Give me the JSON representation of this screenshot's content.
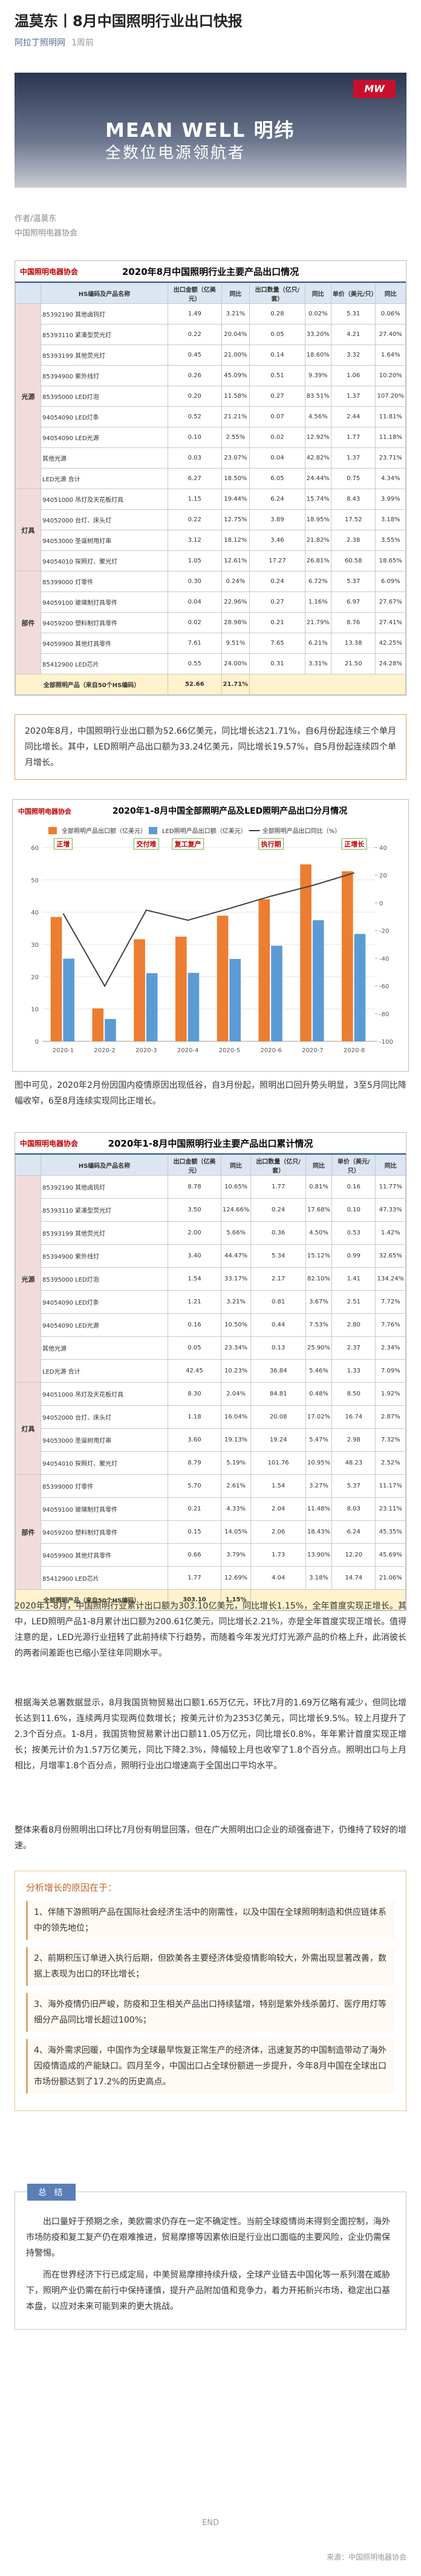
{
  "header": {
    "title": "温莫东丨8月中国照明行业出口快报",
    "source": "阿拉丁照明网",
    "time": "1周前"
  },
  "banner": {
    "logo": "MW",
    "line1": "MEAN WELL 明纬",
    "line2": "全数位电源领航者"
  },
  "author": {
    "name": "作者/温莫东",
    "org": "中国照明电器协会"
  },
  "tables": [
    {
      "logo": "中国照明电器协会",
      "title": "2020年8月中国照明行业主要产品出口情况",
      "header": [
        "",
        "HS编码及产品名称",
        "出口金额（亿美元）",
        "同比",
        "出口数量（亿只/套）",
        "同比",
        "单价（美元/只）",
        "同比"
      ],
      "rows": [
        {
          "group": "光源",
          "cells": [
            "85392190 其他卤钨灯",
            "1.49",
            "3.21%",
            "0.28",
            "0.02%",
            "5.31",
            "0.06%"
          ]
        },
        {
          "cells": [
            "85393110 紧凑型荧光灯",
            "0.22",
            "20.04%",
            "0.05",
            "33.20%",
            "4.21",
            "27.40%"
          ]
        },
        {
          "cells": [
            "85393199 其他荧光灯",
            "0.45",
            "21.00%",
            "0.14",
            "18.60%",
            "3.32",
            "1.64%"
          ]
        },
        {
          "cells": [
            "85394900 紫外线灯",
            "0.26",
            "45.09%",
            "0.51",
            "9.39%",
            "1.06",
            "10.20%"
          ]
        },
        {
          "cells": [
            "85395000 LED灯泡",
            "0.20",
            "11.58%",
            "0.27",
            "83.51%",
            "1.37",
            "107.20%"
          ]
        },
        {
          "cells": [
            "94054090 LED灯条",
            "0.52",
            "21.21%",
            "0.07",
            "4.56%",
            "2.44",
            "11.81%"
          ]
        },
        {
          "cells": [
            "94054090 LED光源",
            "0.10",
            "2.55%",
            "0.02",
            "12.92%",
            "1.77",
            "11.18%"
          ]
        },
        {
          "cells": [
            "其他光源",
            "0.03",
            "23.07%",
            "0.04",
            "42.82%",
            "1.37",
            "23.71%"
          ]
        },
        {
          "cells": [
            "LED光源 合计",
            "6.27",
            "18.50%",
            "6.05",
            "24.44%",
            "0.75",
            "4.34%"
          ]
        },
        {
          "group": "灯具",
          "cells": [
            "94051000 吊灯及天花板灯具",
            "1.15",
            "19.44%",
            "6.24",
            "15.74%",
            "8.43",
            "3.99%"
          ]
        },
        {
          "cells": [
            "94052000 台灯、床头灯",
            "0.22",
            "12.75%",
            "3.89",
            "18.95%",
            "17.52",
            "3.18%"
          ]
        },
        {
          "cells": [
            "94053000 圣诞树用灯串",
            "3.12",
            "18.12%",
            "3.46",
            "21.82%",
            "2.38",
            "3.55%"
          ]
        },
        {
          "cells": [
            "94054010 探照灯、聚光灯",
            "1.05",
            "12.61%",
            "17.27",
            "26.81%",
            "60.58",
            "18.65%"
          ]
        },
        {
          "group": "部件",
          "cells": [
            "85399000 灯零件",
            "0.30",
            "0.24%",
            "0.24",
            "6.72%",
            "5.37",
            "6.09%"
          ]
        },
        {
          "cells": [
            "94059100 玻璃制灯具零件",
            "0.04",
            "22.96%",
            "0.27",
            "1.16%",
            "6.97",
            "27.67%"
          ]
        },
        {
          "cells": [
            "94059200 塑料制灯具零件",
            "0.02",
            "28.98%",
            "0.21",
            "21.79%",
            "8.76",
            "27.41%"
          ]
        },
        {
          "cells": [
            "94059900 其他灯具零件",
            "7.61",
            "9.51%",
            "7.65",
            "6.21%",
            "13.38",
            "42.25%"
          ]
        },
        {
          "cells": [
            "85412900 LED芯片",
            "0.55",
            "24.00%",
            "0.31",
            "3.31%",
            "21.50",
            "24.28%"
          ]
        }
      ],
      "total": [
        "全部照明产品（来自50个HS编码）",
        "52.66",
        "21.71%"
      ]
    },
    {
      "logo": "中国照明电器协会",
      "title": "2020年1-8月中国照明行业主要产品出口累计情况",
      "header": [
        "",
        "HS编码及产品名称",
        "出口金额（亿美元）",
        "同比",
        "出口数量（亿只/套）",
        "同比",
        "单价（美元/只）",
        "同比"
      ],
      "rows": [
        {
          "group": "光源",
          "cells": [
            "85392190 其他卤钨灯",
            "8.78",
            "10.65%",
            "1.77",
            "0.81%",
            "0.16",
            "11.77%"
          ]
        },
        {
          "cells": [
            "85393110 紧凑型荧光灯",
            "3.50",
            "124.66%",
            "0.24",
            "17.68%",
            "0.10",
            "47.33%"
          ]
        },
        {
          "cells": [
            "85393199 其他荧光灯",
            "2.00",
            "5.66%",
            "0.36",
            "4.50%",
            "0.53",
            "1.42%"
          ]
        },
        {
          "cells": [
            "85394900 紫外线灯",
            "3.40",
            "44.47%",
            "5.34",
            "15.12%",
            "0.99",
            "32.65%"
          ]
        },
        {
          "cells": [
            "85395000 LED灯泡",
            "1.54",
            "33.17%",
            "2.17",
            "82.10%",
            "1.41",
            "134.24%"
          ]
        },
        {
          "cells": [
            "94054090 LED灯条",
            "1.21",
            "3.21%",
            "0.81",
            "3.67%",
            "2.51",
            "7.72%"
          ]
        },
        {
          "cells": [
            "94054090 LED光源",
            "0.16",
            "10.50%",
            "0.44",
            "7.53%",
            "2.80",
            "7.76%"
          ]
        },
        {
          "cells": [
            "其他光源",
            "0.05",
            "23.34%",
            "0.13",
            "25.90%",
            "2.37",
            "2.34%"
          ]
        },
        {
          "cells": [
            "LED光源 合计",
            "42.45",
            "10.23%",
            "36.84",
            "5.46%",
            "1.33",
            "7.09%"
          ]
        },
        {
          "group": "灯具",
          "cells": [
            "94051000 吊灯及天花板灯具",
            "8.30",
            "2.04%",
            "84.81",
            "0.48%",
            "8.50",
            "1.92%"
          ]
        },
        {
          "cells": [
            "94052000 台灯、床头灯",
            "1.18",
            "16.04%",
            "20.08",
            "17.02%",
            "16.74",
            "2.87%"
          ]
        },
        {
          "cells": [
            "94053000 圣诞树用灯串",
            "3.60",
            "19.13%",
            "19.24",
            "5.47%",
            "2.98",
            "7.32%"
          ]
        },
        {
          "cells": [
            "94054010 探照灯、聚光灯",
            "8.79",
            "5.19%",
            "101.76",
            "10.95%",
            "48.23",
            "2.52%"
          ]
        },
        {
          "group": "部件",
          "cells": [
            "85399000 灯零件",
            "5.70",
            "2.61%",
            "1.54",
            "3.27%",
            "5.37",
            "11.17%"
          ]
        },
        {
          "cells": [
            "94059100 玻璃制灯具零件",
            "0.21",
            "4.33%",
            "2.04",
            "11.48%",
            "8.03",
            "23.11%"
          ]
        },
        {
          "cells": [
            "94059200 塑料制灯具零件",
            "0.15",
            "14.05%",
            "2.06",
            "18.43%",
            "6.24",
            "45.35%"
          ]
        },
        {
          "cells": [
            "94059900 其他灯具零件",
            "0.66",
            "3.79%",
            "1.73",
            "13.90%",
            "12.20",
            "45.69%"
          ]
        },
        {
          "cells": [
            "85412900 LED芯片",
            "1.77",
            "12.69%",
            "4.04",
            "3.18%",
            "14.74",
            "21.06%"
          ]
        }
      ],
      "total": [
        "全部照明产品（来自50个HS编码）",
        "303.10",
        "1.15%"
      ]
    }
  ],
  "paragraphs": [
    "2020年8月，中国照明行业出口额为52.66亿美元，同比增长达21.71%，自6月份起连续三个单月同比增长。其中，LED照明产品出口额为33.24亿美元，同比增长19.57%，自5月份起连续四个单月增长。",
    "图中可见，2020年2月份因国内疫情原因出现低谷，自3月份起，照明出口回升势头明显，3至5月同比降幅收窄，6至8月连续实现同比正增长。",
    "2020年1-8月，中国照明行业累计出口额为303.10亿美元，同比增长1.15%，全年首度实现正增长。其中，LED照明产品1-8月累计出口额为200.61亿美元，同比增长2.21%，亦是全年首度实现正增长。值得注意的是，LED光源行业扭转了此前持续下行趋势，而随着今年发光灯灯光源产品的价格上升，此消彼长的两者间差距也已缩小至往年同期水平。",
    "根据海关总署数据显示，8月我国货物贸易出口额1.65万亿元，环比7月的1.69万亿略有减少，但同比增长达到11.6%，连续两月实现两位数增长；按美元计价为2353亿美元，同比增长9.5%。较上月提升了2.3个百分点。1-8月，我国货物贸易累计出口额11.05万亿元，同比增长0.8%，年年累计首度实现正增长；按美元计价为1.57万亿美元，同比下降2.3%，降幅较上月也收窄了1.8个百分点。照明出口与上月相比，月增率1.8个百分点，照明行业出口增速高于全国出口平均水平。",
    "整体来看8月份照明出口环比7月份有明显回落，但在广大照明出口企业的顽强奋进下，仍维持了较好的增速。"
  ],
  "analysis": {
    "heading": "分析增长的原因在于：",
    "points": [
      "1、伴随下游照明产品在国际社会经济生活中的刚需性，以及中国在全球照明制造和供应链体系中的领先地位；",
      "2、前期积压订单进入执行后期，但欧美各主要经济体受疫情影响较大，外需出现显著改善，数据上表现为出口的环比增长；",
      "3、海外疫情仍旧严峻，防疫和卫生相关产品出口持续猛增，特别是紫外线杀菌灯、医疗用灯等细分产品同比增长超过100%；",
      "4、海外需求回暖，中国作为全球最早恢复正常生产的经济体，迅速复苏的中国制造带动了海外因疫情造成的产能缺口。四月至今，中国出口占全球份额进一步提升，今年8月中国在全球出口市场份额达到了17.2%的历史高点。"
    ]
  },
  "conclusion": {
    "tag": "总 结",
    "paragraphs": [
      "出口量好于预期之余，美欧需求仍存在一定不确定性。当前全球疫情尚未得到全面控制，海外市场防疫和复工复产仍在艰难推进，贸易摩擦等因素依旧是行业出口面临的主要风险，企业仍需保持警惕。",
      "而在世界经济下行已成定局，中美贸易摩擦持续升级，全球产业链去中国化等一系列潜在威胁下，照明产业仍需在前行中保持谨慎，提升产品附加值和竞争力，着力开拓新兴市场，稳定出口基本盘，以应对未来可能到来的更大挑战。"
    ]
  },
  "end": "END",
  "footer": "来源：中国照明电器协会",
  "chart_data": {
    "type": "bar",
    "logo": "中国照明电器协会",
    "title": "2020年1-8月中国全部照明产品及LED照明产品出口分月情况",
    "categories": [
      "2020-1",
      "2020-2",
      "2020-3",
      "2020-4",
      "2020-5",
      "2020-6",
      "2020-7",
      "2020-8"
    ],
    "series": [
      {
        "name": "全部照明产品出口额（亿美元）",
        "color": "#ed7d31",
        "values": [
          38.5,
          10.2,
          31.6,
          32.4,
          38.9,
          44.0,
          54.8,
          52.66
        ]
      },
      {
        "name": "LED照明产品出口额（亿美元）",
        "color": "#5b9bd5",
        "values": [
          25.6,
          6.9,
          21.1,
          21.2,
          25.5,
          29.6,
          37.5,
          33.24
        ]
      },
      {
        "name": "全部照明产品出口同比（%）",
        "color": "#404040",
        "type": "line",
        "axis": "y2",
        "values": [
          -7.58,
          -60.1,
          -5.2,
          -12.5,
          -4.0,
          4.9,
          12.6,
          21.71
        ]
      }
    ],
    "ylim": [
      0,
      60
    ],
    "yticks": [
      0,
      10,
      20,
      30,
      40,
      50,
      60
    ],
    "y2lim": [
      -100,
      40
    ],
    "y2ticks": [
      -100,
      -80,
      -60,
      -40,
      -20,
      0,
      20,
      40
    ],
    "annotations": [
      "正增",
      "交付难",
      "复工复产",
      "执行期",
      "正增长"
    ],
    "grid": true
  }
}
